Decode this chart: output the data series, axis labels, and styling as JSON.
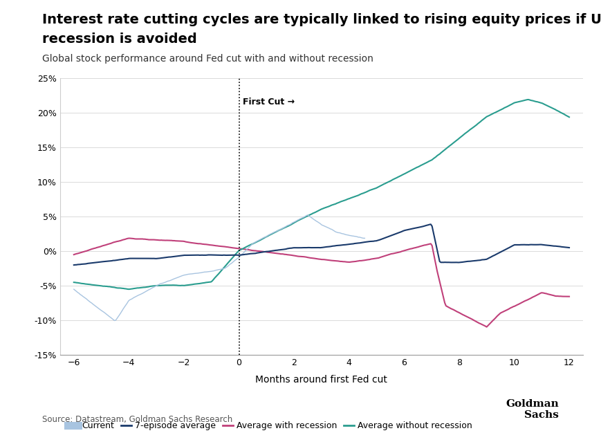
{
  "title_line1": "Interest rate cutting cycles are typically linked to rising equity prices if US",
  "title_line2": "recession is avoided",
  "subtitle": "Global stock performance around Fed cut with and without recession",
  "xlabel": "Months around first Fed cut",
  "source": "Source: Datastream, Goldman Sachs Research",
  "ylim": [
    -0.15,
    0.25
  ],
  "yticks": [
    -0.15,
    -0.1,
    -0.05,
    0.0,
    0.05,
    0.1,
    0.15,
    0.2,
    0.25
  ],
  "xticks": [
    -6,
    -4,
    -2,
    0,
    2,
    4,
    6,
    8,
    10,
    12
  ],
  "xlim": [
    -6.5,
    12.5
  ],
  "first_cut_label": "First Cut →",
  "colors": {
    "current": "#a8c4e0",
    "avg7": "#1a3a6b",
    "recession": "#c0407a",
    "no_recession": "#2a9d8f"
  },
  "legend_labels": {
    "current": "Current",
    "avg7": "7-episode average",
    "recession": "Average with recession",
    "no_recession": "Average without recession"
  },
  "background_color": "#ffffff",
  "title_fontsize": 14,
  "subtitle_fontsize": 10,
  "goldman_sachs_text": "Goldman\nSachs"
}
